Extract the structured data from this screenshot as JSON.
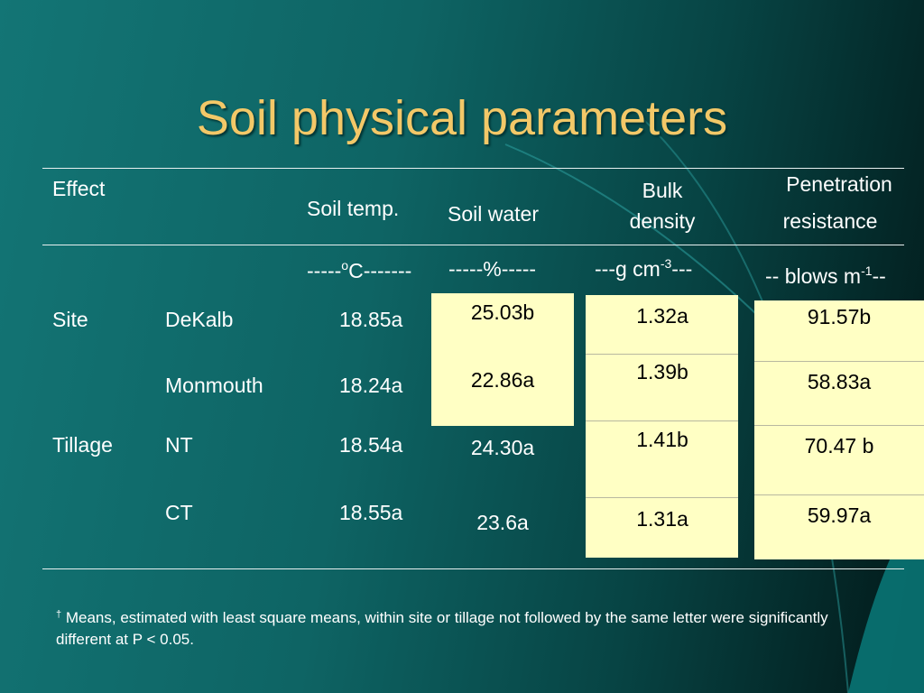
{
  "title": "Soil physical parameters",
  "table": {
    "headers": [
      [
        "Effect"
      ],
      [
        "Soil temp."
      ],
      [
        "Soil water"
      ],
      [
        "Bulk",
        "density"
      ],
      [
        "Penetration",
        "resistance"
      ]
    ],
    "units": [
      [
        "-----",
        "o",
        "C-------"
      ],
      [
        "-----%-----"
      ],
      [
        "---g cm",
        "-3",
        "---"
      ],
      [
        "-- blows m",
        "-1",
        "--"
      ]
    ],
    "groups": [
      {
        "label": "Site",
        "rows": [
          {
            "name": "DeKalb",
            "values": [
              "18.85a",
              "25.03b",
              "1.32a",
              "91.57b"
            ]
          },
          {
            "name": "Monmouth",
            "values": [
              "18.24a",
              "22.86a",
              "1.39b",
              "58.83a"
            ]
          }
        ]
      },
      {
        "label": "Tillage",
        "rows": [
          {
            "name": "NT",
            "values": [
              "18.54a",
              "24.30a",
              "1.41b",
              "70.47 b"
            ]
          },
          {
            "name": "CT",
            "values": [
              "18.55a",
              "23.6a",
              "1.31a",
              "59.97a"
            ]
          }
        ]
      }
    ]
  },
  "footnote": {
    "mark": "†",
    "text": "Means, estimated with least square means, within site or tillage not followed by the same letter were significantly different at P < 0.05."
  }
}
